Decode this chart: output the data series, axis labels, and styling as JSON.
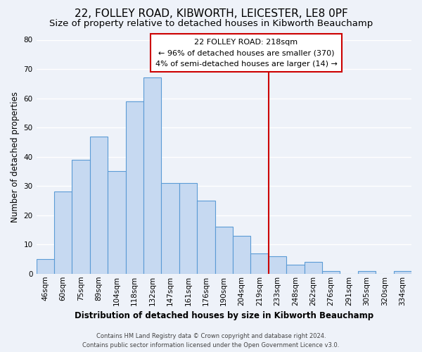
{
  "title": "22, FOLLEY ROAD, KIBWORTH, LEICESTER, LE8 0PF",
  "subtitle": "Size of property relative to detached houses in Kibworth Beauchamp",
  "xlabel": "Distribution of detached houses by size in Kibworth Beauchamp",
  "ylabel": "Number of detached properties",
  "bar_labels": [
    "46sqm",
    "60sqm",
    "75sqm",
    "89sqm",
    "104sqm",
    "118sqm",
    "132sqm",
    "147sqm",
    "161sqm",
    "176sqm",
    "190sqm",
    "204sqm",
    "219sqm",
    "233sqm",
    "248sqm",
    "262sqm",
    "276sqm",
    "291sqm",
    "305sqm",
    "320sqm",
    "334sqm"
  ],
  "bar_heights": [
    5,
    28,
    39,
    47,
    35,
    59,
    67,
    31,
    31,
    25,
    16,
    13,
    7,
    6,
    3,
    4,
    1,
    0,
    1,
    0,
    1
  ],
  "bar_color": "#c6d9f1",
  "bar_edge_color": "#5b9bd5",
  "vline_label_index": 12,
  "vline_color": "#cc0000",
  "annotation_title": "22 FOLLEY ROAD: 218sqm",
  "annotation_line1": "← 96% of detached houses are smaller (370)",
  "annotation_line2": "4% of semi-detached houses are larger (14) →",
  "annotation_box_facecolor": "#ffffff",
  "annotation_box_edgecolor": "#cc0000",
  "ylim": [
    0,
    80
  ],
  "yticks": [
    0,
    10,
    20,
    30,
    40,
    50,
    60,
    70,
    80
  ],
  "footer1": "Contains HM Land Registry data © Crown copyright and database right 2024.",
  "footer2": "Contains public sector information licensed under the Open Government Licence v3.0.",
  "background_color": "#eef2f9",
  "grid_color": "#ffffff",
  "title_fontsize": 11,
  "subtitle_fontsize": 9.5,
  "axis_label_fontsize": 8.5,
  "tick_fontsize": 7.5,
  "footer_fontsize": 6
}
